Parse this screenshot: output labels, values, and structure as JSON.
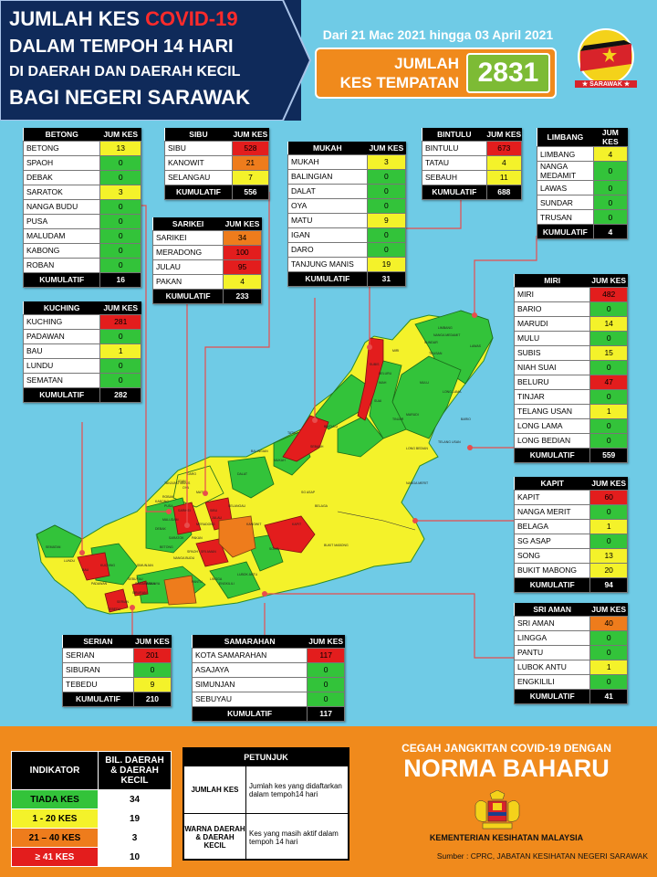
{
  "header": {
    "title_part1": "JUMLAH KES ",
    "title_covid": "COVID-19",
    "title_line2": "DALAM TEMPOH 14 HARI",
    "title_line3": "DI DAERAH DAN DAERAH KECIL",
    "title_line4": "BAGI NEGERI SARAWAK",
    "date_range": "Dari 21 Mac 2021 hingga 03 April 2021",
    "total_label_1": "JUMLAH",
    "total_label_2": "KES TEMPATAN",
    "total_value": "2831",
    "badge_text": "★ SARAWAK ★"
  },
  "colors": {
    "green": "#33c33a",
    "yellow": "#f4f22a",
    "orange": "#ee7c1c",
    "red": "#e31d1d"
  },
  "col_header": "JUM KES",
  "kumulatif_label": "KUMULATIF",
  "divisions": {
    "betong": {
      "name": "BETONG",
      "rows": [
        [
          "BETONG",
          "13"
        ],
        [
          "SPAOH",
          "0"
        ],
        [
          "DEBAK",
          "0"
        ],
        [
          "SARATOK",
          "3"
        ],
        [
          "NANGA BUDU",
          "0"
        ],
        [
          "PUSA",
          "0"
        ],
        [
          "MALUDAM",
          "0"
        ],
        [
          "KABONG",
          "0"
        ],
        [
          "ROBAN",
          "0"
        ]
      ],
      "total": "16"
    },
    "sibu": {
      "name": "SIBU",
      "rows": [
        [
          "SIBU",
          "528"
        ],
        [
          "KANOWIT",
          "21"
        ],
        [
          "SELANGAU",
          "7"
        ]
      ],
      "total": "556"
    },
    "sarikei": {
      "name": "SARIKEI",
      "rows": [
        [
          "SARIKEI",
          "34"
        ],
        [
          "MERADONG",
          "100"
        ],
        [
          "JULAU",
          "95"
        ],
        [
          "PAKAN",
          "4"
        ]
      ],
      "total": "233"
    },
    "mukah": {
      "name": "MUKAH",
      "rows": [
        [
          "MUKAH",
          "3"
        ],
        [
          "BALINGIAN",
          "0"
        ],
        [
          "DALAT",
          "0"
        ],
        [
          "OYA",
          "0"
        ],
        [
          "MATU",
          "9"
        ],
        [
          "IGAN",
          "0"
        ],
        [
          "DARO",
          "0"
        ],
        [
          "TANJUNG MANIS",
          "19"
        ]
      ],
      "total": "31"
    },
    "bintulu": {
      "name": "BINTULU",
      "rows": [
        [
          "BINTULU",
          "673"
        ],
        [
          "TATAU",
          "4"
        ],
        [
          "SEBAUH",
          "11"
        ]
      ],
      "total": "688"
    },
    "limbang": {
      "name": "LIMBANG",
      "rows": [
        [
          "LIMBANG",
          "4"
        ],
        [
          "NANGA MEDAMIT",
          "0"
        ],
        [
          "LAWAS",
          "0"
        ],
        [
          "SUNDAR",
          "0"
        ],
        [
          "TRUSAN",
          "0"
        ]
      ],
      "total": "4"
    },
    "kuching": {
      "name": "KUCHING",
      "rows": [
        [
          "KUCHING",
          "281"
        ],
        [
          "PADAWAN",
          "0"
        ],
        [
          "BAU",
          "1"
        ],
        [
          "LUNDU",
          "0"
        ],
        [
          "SEMATAN",
          "0"
        ]
      ],
      "total": "282"
    },
    "miri": {
      "name": "MIRI",
      "rows": [
        [
          "MIRI",
          "482"
        ],
        [
          "BARIO",
          "0"
        ],
        [
          "MARUDI",
          "14"
        ],
        [
          "MULU",
          "0"
        ],
        [
          "SUBIS",
          "15"
        ],
        [
          "NIAH SUAI",
          "0"
        ],
        [
          "BELURU",
          "47"
        ],
        [
          "TINJAR",
          "0"
        ],
        [
          "TELANG USAN",
          "1"
        ],
        [
          "LONG LAMA",
          "0"
        ],
        [
          "LONG BEDIAN",
          "0"
        ]
      ],
      "total": "559"
    },
    "kapit": {
      "name": "KAPIT",
      "rows": [
        [
          "KAPIT",
          "60"
        ],
        [
          "NANGA MERIT",
          "0"
        ],
        [
          "BELAGA",
          "1"
        ],
        [
          "SG ASAP",
          "0"
        ],
        [
          "SONG",
          "13"
        ],
        [
          "BUKIT MABONG",
          "20"
        ]
      ],
      "total": "94"
    },
    "sriaman": {
      "name": "SRI AMAN",
      "rows": [
        [
          "SRI AMAN",
          "40"
        ],
        [
          "LINGGA",
          "0"
        ],
        [
          "PANTU",
          "0"
        ],
        [
          "LUBOK ANTU",
          "1"
        ],
        [
          "ENGKILILI",
          "0"
        ]
      ],
      "total": "41"
    },
    "serian": {
      "name": "SERIAN",
      "rows": [
        [
          "SERIAN",
          "201"
        ],
        [
          "SIBURAN",
          "0"
        ],
        [
          "TEBEDU",
          "9"
        ]
      ],
      "total": "210"
    },
    "samarahan": {
      "name": "SAMARAHAN",
      "rows": [
        [
          "KOTA SAMARAHAN",
          "117"
        ],
        [
          "ASAJAYA",
          "0"
        ],
        [
          "SIMUNJAN",
          "0"
        ],
        [
          "SEBUYAU",
          "0"
        ]
      ],
      "total": "117"
    }
  },
  "map_labels": [
    "LIMBANG",
    "NANGA MEDAMIT",
    "SUNDAR",
    "TRUSAN",
    "LAWAS",
    "LONG LAMA",
    "TELANG USAN",
    "MARUDI",
    "BARIO",
    "SUBIS",
    "NIAH",
    "TATAU",
    "SEBAUH",
    "BINTULU",
    "MUKAH",
    "DALAT",
    "BALINGIAN",
    "BELAGA",
    "SG ASAP",
    "KAPIT",
    "SONG",
    "BUKIT MABONG",
    "KANOWIT",
    "SELANGAU",
    "SIBU",
    "MATU",
    "DARO",
    "TANJUNG MANIS",
    "IGAN",
    "PUSA",
    "KABONG",
    "ROBAN",
    "BETONG",
    "SARATOK",
    "SPAOH",
    "SRI AMAN",
    "LINGGA",
    "PANTU",
    "ENGKILILI",
    "LUBOK ANTU",
    "SEBUYAU",
    "SIMUNJAN",
    "SERIAN",
    "TEBEDU",
    "SIBURAN",
    "KUCHING",
    "PADAWAN",
    "BAU",
    "LUNDU",
    "SEMATAN",
    "ASAJAYA",
    "JULAU",
    "PAKAN",
    "MERADONG",
    "SARIKEI",
    "SUAI",
    "MIRI",
    "BELURU",
    "LONG BEDIAN",
    "MULU",
    "TINJAR",
    "NANGA MERIT",
    "DEBAK",
    "MALUDAM",
    "NANGA BUDU",
    "OYA",
    "SAMARAHAN"
  ],
  "legend": {
    "col1": "INDIKATOR",
    "col2": "BIL. DAERAH & DAERAH KECIL",
    "rows": [
      {
        "label": "TIADA KES",
        "count": "34"
      },
      {
        "label": "1 - 20 KES",
        "count": "19"
      },
      {
        "label": "21 – 40 KES",
        "count": "3"
      },
      {
        "label": "≥ 41 KES",
        "count": "10"
      }
    ]
  },
  "petunjuk": {
    "title": "PETUNJUK",
    "k1": "JUMLAH KES",
    "d1": "Jumlah kes yang didaftarkan dalam tempoh14 hari",
    "k2": "WARNA DAERAH & DAERAH KECIL",
    "d2": "Kes yang masih aktif dalam tempoh 14 hari"
  },
  "footer": {
    "cegah": "CEGAH JANGKITAN COVID-19 DENGAN",
    "norma": "NORMA BAHARU",
    "kkm": "KEMENTERIAN KESIHATAN MALAYSIA",
    "sumber": "Sumber : CPRC, JABATAN KESIHATAN NEGERI SARAWAK"
  }
}
